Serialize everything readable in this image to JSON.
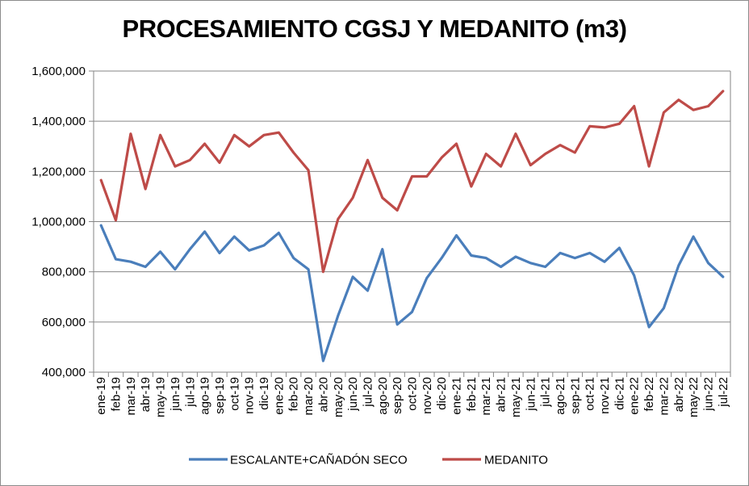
{
  "chart_data": {
    "type": "line",
    "title": "PROCESAMIENTO CGSJ Y MEDANITO (m3)",
    "xlabel": "",
    "ylabel": "",
    "ylim": [
      400000,
      1600000
    ],
    "yticks": [
      400000,
      600000,
      800000,
      1000000,
      1200000,
      1400000,
      1600000
    ],
    "ytick_labels": [
      "400,000",
      "600,000",
      "800,000",
      "1,000,000",
      "1,200,000",
      "1,400,000",
      "1,600,000"
    ],
    "grid": true,
    "legend_position": "bottom",
    "categories": [
      "ene-19",
      "feb-19",
      "mar-19",
      "abr-19",
      "may-19",
      "jun-19",
      "jul-19",
      "ago-19",
      "sep-19",
      "oct-19",
      "nov-19",
      "dic-19",
      "ene-20",
      "feb-20",
      "mar-20",
      "abr-20",
      "may-20",
      "jun-20",
      "jul-20",
      "ago-20",
      "sep-20",
      "oct-20",
      "nov-20",
      "dic-20",
      "ene-21",
      "feb-21",
      "mar-21",
      "abr-21",
      "may-21",
      "jun-21",
      "jul-21",
      "ago-21",
      "sep-21",
      "oct-21",
      "nov-21",
      "dic-21",
      "ene-22",
      "feb-22",
      "mar-22",
      "abr-22",
      "may-22",
      "jun-22",
      "jul-22"
    ],
    "series": [
      {
        "name": "ESCALANTE+CAÑADÓN SECO",
        "color": "#4a7ebb",
        "values": [
          985000,
          850000,
          840000,
          820000,
          880000,
          810000,
          890000,
          960000,
          875000,
          940000,
          885000,
          905000,
          955000,
          855000,
          810000,
          445000,
          625000,
          780000,
          725000,
          890000,
          590000,
          640000,
          775000,
          855000,
          945000,
          865000,
          855000,
          820000,
          860000,
          835000,
          820000,
          875000,
          855000,
          875000,
          840000,
          895000,
          785000,
          580000,
          655000,
          825000,
          940000,
          835000,
          780000
        ]
      },
      {
        "name": "MEDANITO",
        "color": "#be4b48",
        "values": [
          1165000,
          1005000,
          1350000,
          1130000,
          1345000,
          1220000,
          1245000,
          1310000,
          1235000,
          1345000,
          1300000,
          1345000,
          1355000,
          1275000,
          1205000,
          800000,
          1010000,
          1095000,
          1245000,
          1095000,
          1045000,
          1180000,
          1180000,
          1255000,
          1310000,
          1140000,
          1270000,
          1220000,
          1350000,
          1225000,
          1270000,
          1305000,
          1275000,
          1380000,
          1375000,
          1390000,
          1460000,
          1220000,
          1435000,
          1485000,
          1445000,
          1460000,
          1520000
        ]
      }
    ]
  }
}
